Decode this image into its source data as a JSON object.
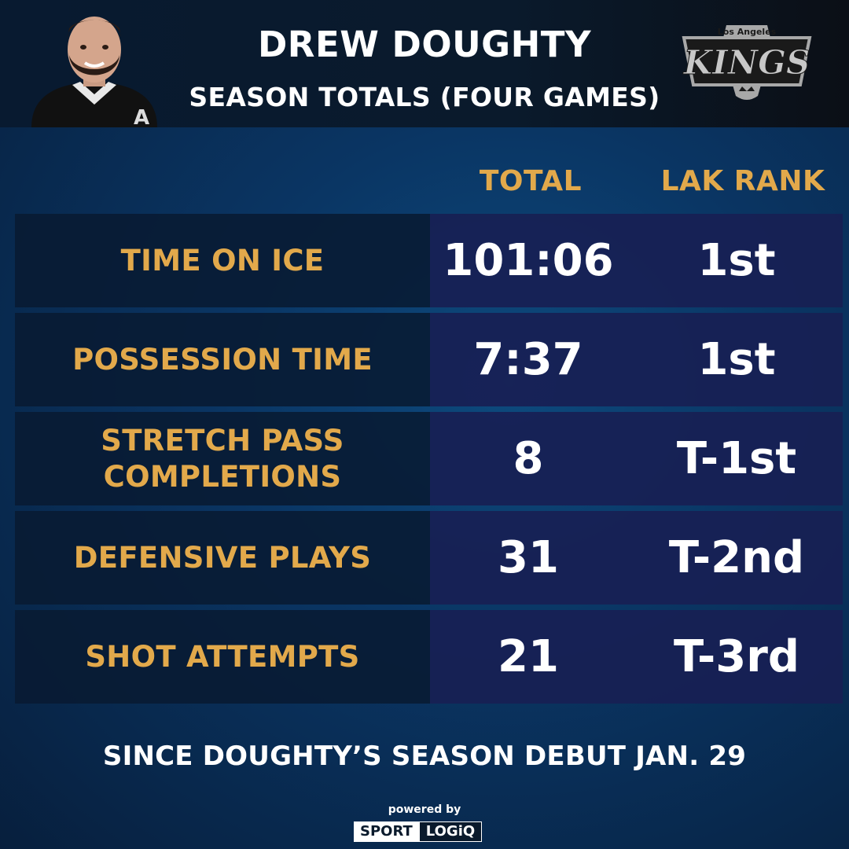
{
  "header": {
    "title": "DREW DOUGHTY",
    "subtitle": "SEASON TOTALS (FOUR GAMES)",
    "logo_top_text": "Los Angeles",
    "logo_main_text": "KINGS"
  },
  "columns": {
    "total": "TOTAL",
    "rank": "LAK RANK"
  },
  "rows": [
    {
      "stat": "TIME ON ICE",
      "total": "101:06",
      "rank": "1st"
    },
    {
      "stat": "POSSESSION TIME",
      "total": "7:37",
      "rank": "1st"
    },
    {
      "stat": "STRETCH PASS COMPLETIONS",
      "total": "8",
      "rank": "T-1st"
    },
    {
      "stat": "DEFENSIVE PLAYS",
      "total": "31",
      "rank": "T-2nd"
    },
    {
      "stat": "SHOT ATTEMPTS",
      "total": "21",
      "rank": "T-3rd"
    }
  ],
  "footnote": "SINCE DOUGHTY’S SEASON DEBUT JAN. 29",
  "footer": {
    "powered_by": "powered by",
    "brand_left": "SPORT",
    "brand_right": "LOGiQ"
  },
  "colors": {
    "accent": "#e2a94b",
    "text": "#ffffff",
    "background": "#0a3563"
  }
}
